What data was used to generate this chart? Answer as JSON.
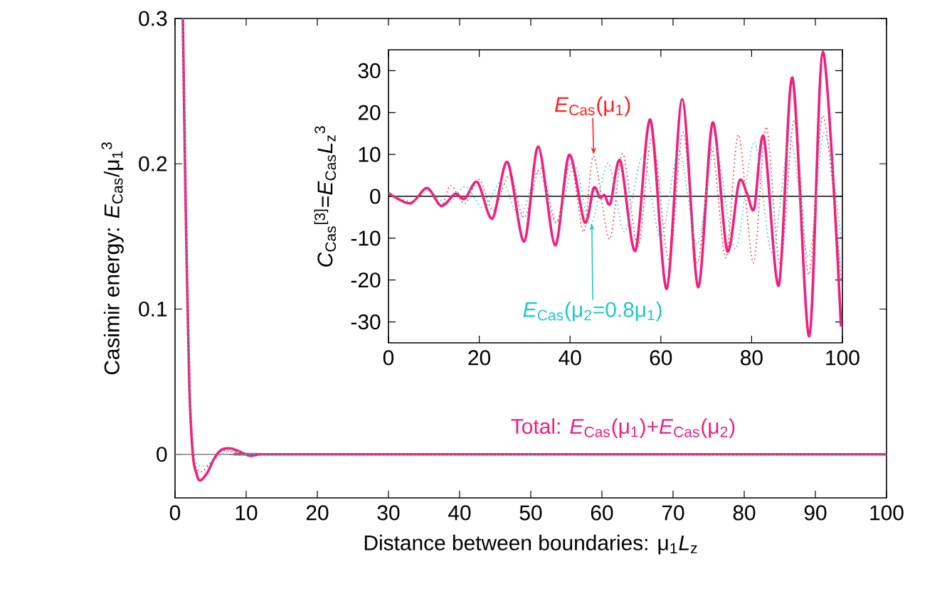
{
  "chart_data": [
    {
      "type": "line",
      "xlabel": "Distance between boundaries: μ$_{1}$*L*$_{z}$",
      "ylabel": "Casimir energy: *E*$_{Cas}$/μ$_{1}$$^{3}$",
      "xlim": [
        0,
        100
      ],
      "ylim": [
        -0.03,
        0.3
      ],
      "xticks": [
        0,
        10,
        20,
        30,
        40,
        50,
        60,
        70,
        80,
        90,
        100
      ],
      "yticks": [
        0,
        0.1,
        0.2,
        0.3
      ],
      "ref_lines": [
        {
          "axis": "y",
          "value": 0,
          "color": "#808080"
        }
      ],
      "series": [
        {
          "color": "#ff2020",
          "line_style": "dotted",
          "x": [
            1.1,
            1.5,
            2,
            2.5,
            3.5,
            5,
            6.5,
            8,
            10,
            15,
            100
          ],
          "values": [
            0.3,
            0.16,
            0.045,
            0.0,
            -0.012,
            -0.006,
            0.002,
            0.002,
            0.0,
            0.0,
            0.0
          ]
        },
        {
          "color": "#20c8c8",
          "line_style": "dotted",
          "x": [
            1.1,
            1.5,
            2,
            2.7,
            4,
            5.5,
            7,
            9,
            11,
            15,
            100
          ],
          "values": [
            0.3,
            0.17,
            0.06,
            0.0,
            -0.008,
            -0.004,
            0.001,
            0.002,
            0.0,
            0.0,
            0.0
          ]
        },
        {
          "name": "Total: *E*$_{Cas}$(μ$_{1}$)+*E*$_{Cas}$(μ$_{2}$)",
          "color": "#f0207f",
          "line_style": "solid",
          "x": [
            1.1,
            1.5,
            2,
            2.5,
            3,
            3.5,
            4.5,
            5.5,
            6.5,
            7.8,
            9,
            10.5,
            12,
            15,
            100
          ],
          "values": [
            0.3,
            0.17,
            0.05,
            0.0,
            -0.013,
            -0.018,
            -0.013,
            -0.003,
            0.003,
            0.004,
            0.002,
            -0.001,
            0.0,
            0.0,
            0.0
          ]
        }
      ]
    },
    {
      "type": "line",
      "ylabel": "*C*$_{Cas}$$^{[3]}$=*E*$_{Cas}$*L*$_{z}$$^{3}$",
      "xlim": [
        0,
        100
      ],
      "ylim": [
        -35,
        35
      ],
      "xticks": [
        0,
        20,
        40,
        60,
        80,
        100
      ],
      "yticks": [
        -30,
        -20,
        -10,
        0,
        10,
        20,
        30
      ],
      "ref_lines": [
        {
          "axis": "y",
          "value": 0,
          "color": "#000000"
        }
      ],
      "series": [
        {
          "name": "*E*$_{Cas}$(μ$_{1}$)",
          "color": "#ff2020",
          "line_style": "dotted",
          "x": [
            0,
            4.8,
            8.5,
            11.6,
            13.7,
            16.8,
            20,
            23.1,
            26.7,
            29.9,
            33.5,
            37,
            40.1,
            43,
            45.2,
            48.7,
            51.6,
            55,
            58.1,
            61.8,
            64.9,
            68,
            71.2,
            74.3,
            77.1,
            80.4,
            83.2,
            86.3,
            89.4,
            92.6,
            95.7,
            99.7
          ],
          "values": [
            0.8,
            -1.5,
            1.7,
            -2.3,
            2.6,
            -1.7,
            4,
            -3.4,
            5.1,
            -5.1,
            6.8,
            -6.2,
            7.9,
            -8.5,
            9.6,
            -10.2,
            10.2,
            -11.9,
            14.2,
            -15.3,
            15.3,
            -15.9,
            11.3,
            -14.7,
            14.7,
            -15.9,
            16.6,
            -16.4,
            18.1,
            -18.7,
            19.3,
            -19.8
          ]
        },
        {
          "name": "*E*$_{Cas}$(μ$_{2}$=0.8μ$_{1}$)",
          "color": "#20c8c8",
          "line_style": "dotted",
          "x": [
            0,
            5,
            9,
            13,
            17,
            21,
            25,
            29,
            33,
            37,
            41,
            44.5,
            48.4,
            52,
            56,
            60,
            64,
            68,
            72,
            76.4,
            80.6,
            84.5,
            88.5,
            92.5,
            96,
            99.7
          ],
          "values": [
            0.8,
            -1.2,
            1.2,
            -1.8,
            2.3,
            -2.8,
            3.6,
            -5,
            6,
            -6.5,
            7.5,
            -6.8,
            7.9,
            -8.5,
            9.5,
            -10,
            11,
            -11.5,
            12,
            -12.5,
            13,
            -13.5,
            14,
            -14.5,
            15.3,
            -10.2
          ]
        },
        {
          "color": "#f0207f",
          "line_style": "solid",
          "x": [
            0,
            4.8,
            8.5,
            11.6,
            14.7,
            16.8,
            19.6,
            22.9,
            26.2,
            29.9,
            33,
            36.7,
            39.8,
            43.2,
            45.2,
            46.6,
            47.6,
            48.9,
            51.1,
            54.4,
            57.7,
            61.3,
            64.7,
            68.2,
            71.4,
            74.6,
            77.2,
            79,
            80.6,
            82.7,
            86,
            89,
            92.7,
            95.7,
            99.7
          ],
          "values": [
            0.8,
            -1.7,
            2,
            -2.3,
            0.6,
            -0.6,
            3.4,
            -5.3,
            8.2,
            -10.8,
            11.9,
            -11.7,
            9.9,
            -6.2,
            2,
            -0.3,
            0.3,
            -1.7,
            8.5,
            -13,
            18.3,
            -22.1,
            23.2,
            -21.7,
            17.6,
            -13,
            3.4,
            0.6,
            -2.8,
            14.2,
            -21.3,
            28.3,
            -33.4,
            34.5,
            -31.1
          ]
        }
      ]
    }
  ]
}
